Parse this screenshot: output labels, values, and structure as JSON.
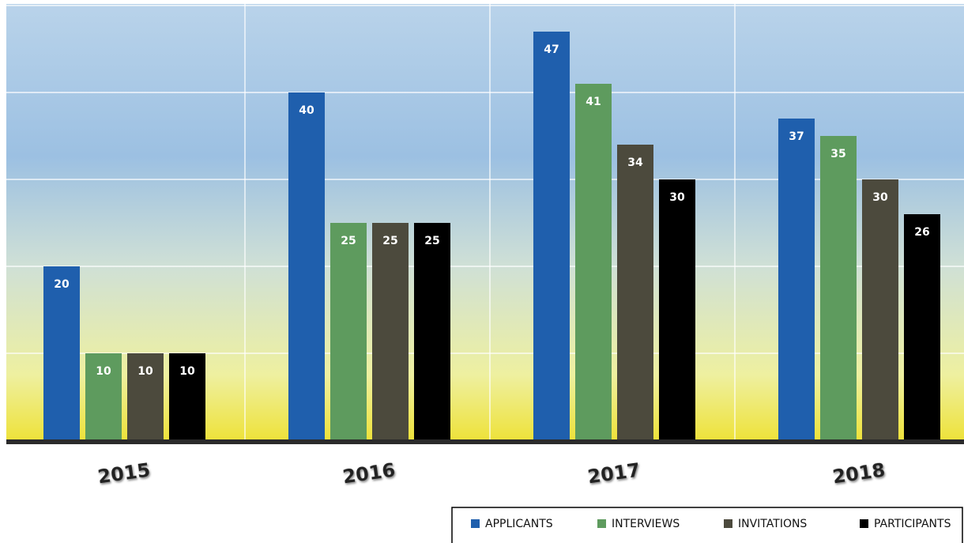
{
  "chart_data": {
    "type": "bar",
    "categories": [
      "2015",
      "2016",
      "2017",
      "2018"
    ],
    "series": [
      {
        "name": "APPLICANTS",
        "color": "#1f5fad",
        "values": [
          20,
          40,
          47,
          37
        ]
      },
      {
        "name": "INTERVIEWS",
        "color": "#5e9b5e",
        "values": [
          10,
          25,
          41,
          35
        ]
      },
      {
        "name": "INVITATIONS",
        "color": "#4c4a3d",
        "values": [
          10,
          25,
          34,
          30
        ]
      },
      {
        "name": "PARTICIPANTS",
        "color": "#000000",
        "values": [
          10,
          25,
          30,
          26
        ]
      }
    ],
    "ylim": [
      0,
      50
    ],
    "yticks": [
      0,
      10,
      20,
      30,
      40,
      50
    ],
    "grid": true
  }
}
